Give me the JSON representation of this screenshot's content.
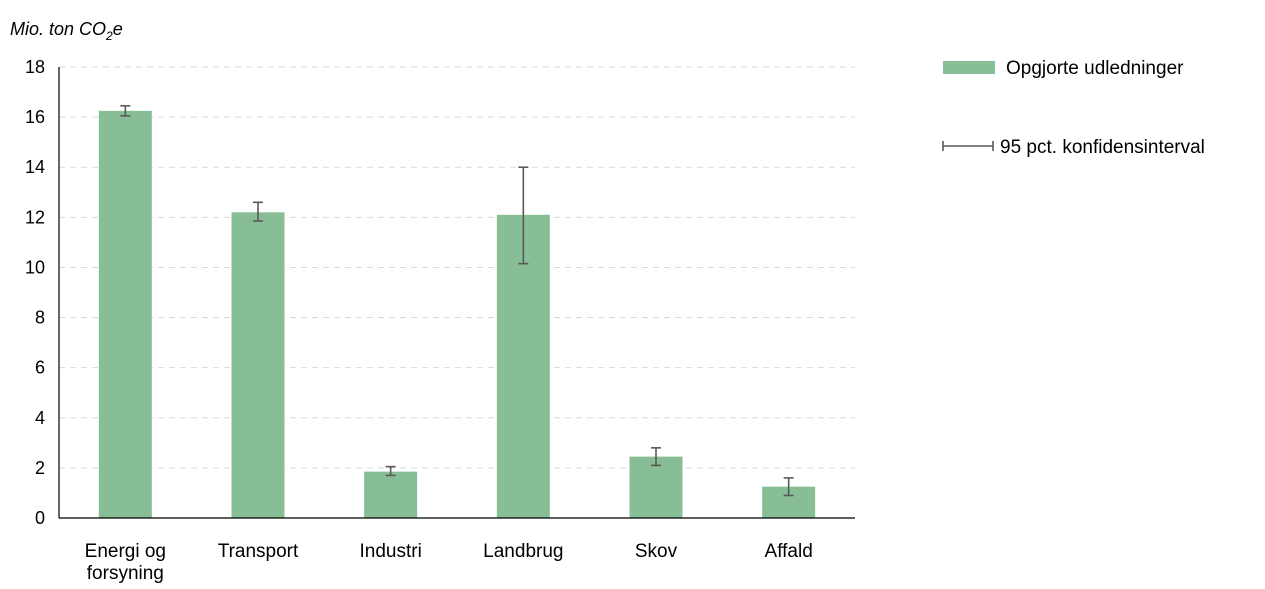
{
  "chart_data": {
    "type": "bar",
    "ylabel_main": "Mio. ton CO",
    "ylabel_sub": "2",
    "ylabel_tail": "e",
    "xlabel": "",
    "ylim": [
      0,
      18
    ],
    "ytick_step": 2,
    "yticks": [
      "0",
      "2",
      "4",
      "6",
      "8",
      "10",
      "12",
      "14",
      "16",
      "18"
    ],
    "grid": true,
    "legend_position": "right",
    "categories": [
      [
        "Energi og",
        "forsyning"
      ],
      [
        "Transport"
      ],
      [
        "Industri"
      ],
      [
        "Landbrug"
      ],
      [
        "Skov"
      ],
      [
        "Affald"
      ]
    ],
    "series": [
      {
        "name": "Opgjorte udledninger",
        "color": "#88be96",
        "values": [
          16.25,
          12.2,
          1.85,
          12.1,
          2.45,
          1.25
        ],
        "error_low": [
          16.05,
          11.85,
          1.7,
          10.15,
          2.1,
          0.9
        ],
        "error_high": [
          16.45,
          12.6,
          2.05,
          14.0,
          2.8,
          1.6
        ]
      }
    ],
    "legend": {
      "bar_label": "Opgjorte udledninger",
      "error_label": "95 pct. konfidensinterval"
    },
    "error_color": "#595959",
    "grid_color": "#d9d9d9"
  }
}
